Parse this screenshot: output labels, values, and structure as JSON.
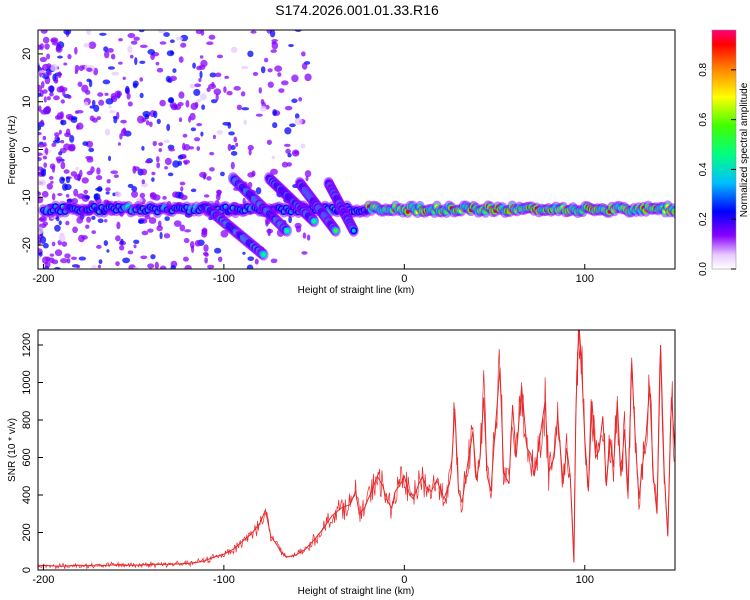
{
  "title": "S174.2026.001.01.33.R16",
  "chart_data": [
    {
      "type": "heatmap",
      "xlabel": "Height of straight line (km)",
      "ylabel": "Frequency (Hz)",
      "xlim": [
        -203,
        150
      ],
      "ylim": [
        -25,
        25
      ],
      "xticks": [
        -200,
        -100,
        0,
        100
      ],
      "yticks": [
        -20,
        -10,
        0,
        10,
        20
      ],
      "colorbar": {
        "label": "Normalized spectral amplitude",
        "range": [
          0,
          0.96
        ],
        "ticks": [
          0.0,
          0.2,
          0.4,
          0.6,
          0.8
        ]
      },
      "features": [
        {
          "name": "steady line",
          "x": [
            -200,
            150
          ],
          "freq": -12.5
        },
        {
          "name": "descending streak 1",
          "x": [
            -110,
            -78
          ],
          "freq": [
            -12,
            -22
          ]
        },
        {
          "name": "descending streak 2",
          "x": [
            -95,
            -65
          ],
          "freq": [
            -6,
            -17
          ]
        },
        {
          "name": "descending streak 3",
          "x": [
            -75,
            -50
          ],
          "freq": [
            -6,
            -15
          ]
        },
        {
          "name": "descending streak 4",
          "x": [
            -58,
            -38
          ],
          "freq": [
            -7,
            -17
          ]
        },
        {
          "name": "descending streak 5",
          "x": [
            -42,
            -28
          ],
          "freq": [
            -7,
            -17
          ]
        }
      ]
    },
    {
      "type": "line",
      "xlabel": "Height of straight line (km)",
      "ylabel": "SNR (10 * v/v)",
      "xlim": [
        -203,
        150
      ],
      "ylim": [
        0,
        1280
      ],
      "xticks": [
        -200,
        -100,
        0,
        100
      ],
      "yticks": [
        0,
        200,
        400,
        600,
        800,
        1000,
        1200
      ],
      "series": [
        {
          "name": "SNR",
          "color": "#e8282a",
          "x": [
            -203,
            -190,
            -180,
            -170,
            -160,
            -150,
            -140,
            -130,
            -120,
            -112,
            -105,
            -100,
            -95,
            -90,
            -85,
            -80,
            -77,
            -74,
            -71,
            -68,
            -65,
            -60,
            -55,
            -50,
            -45,
            -40,
            -35,
            -30,
            -27,
            -25,
            -22,
            -20,
            -18,
            -15,
            -12,
            -10,
            -7,
            -5,
            -2,
            0,
            3,
            5,
            8,
            10,
            12,
            15,
            18,
            20,
            22,
            25,
            26,
            28,
            30,
            32,
            35,
            38,
            40,
            42,
            44,
            46,
            48,
            50,
            53,
            55,
            58,
            60,
            62,
            65,
            68,
            70,
            72,
            75,
            78,
            80,
            83,
            85,
            88,
            90,
            92,
            94,
            95,
            96,
            97,
            98,
            100,
            102,
            104,
            106,
            108,
            110,
            112,
            114,
            116,
            118,
            120,
            122,
            124,
            126,
            128,
            130,
            132,
            134,
            136,
            138,
            140,
            142,
            144,
            146,
            148,
            150
          ],
          "values": [
            25,
            20,
            25,
            22,
            28,
            25,
            30,
            30,
            35,
            45,
            70,
            85,
            110,
            150,
            190,
            250,
            320,
            180,
            140,
            90,
            70,
            80,
            110,
            160,
            220,
            290,
            330,
            350,
            420,
            300,
            330,
            380,
            420,
            500,
            450,
            380,
            330,
            420,
            460,
            500,
            400,
            380,
            460,
            500,
            440,
            420,
            480,
            430,
            380,
            460,
            520,
            860,
            420,
            360,
            560,
            740,
            480,
            600,
            920,
            500,
            420,
            700,
            1080,
            520,
            460,
            880,
            600,
            980,
            650,
            620,
            500,
            700,
            900,
            520,
            600,
            820,
            460,
            650,
            500,
            40,
            820,
            1160,
            1280,
            1130,
            700,
            420,
            900,
            600,
            640,
            820,
            450,
            700,
            550,
            900,
            500,
            750,
            420,
            1100,
            700,
            380,
            560,
            720,
            980,
            500,
            300,
            1200,
            520,
            180,
            920,
            640
          ]
        }
      ]
    }
  ]
}
